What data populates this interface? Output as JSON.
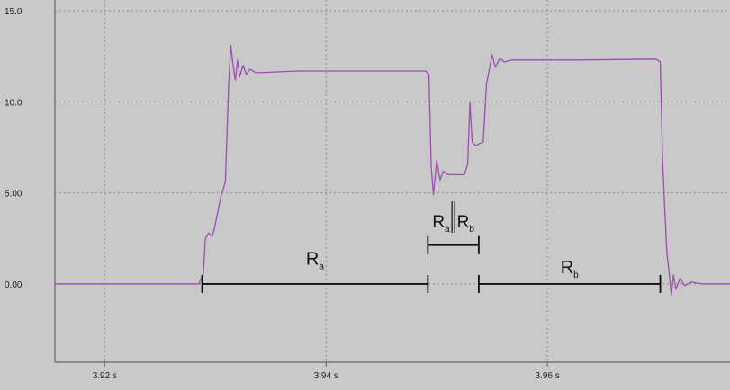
{
  "chart_data": {
    "type": "line",
    "title": "",
    "xlabel": "",
    "ylabel": "",
    "xlim": [
      3.9155,
      3.9765
    ],
    "ylim": [
      -4.3,
      15.6
    ],
    "x_ticks": [
      {
        "value": 3.92,
        "label": "3.92 s"
      },
      {
        "value": 3.94,
        "label": "3.94 s"
      },
      {
        "value": 3.96,
        "label": "3.96 s"
      }
    ],
    "y_ticks": [
      {
        "value": 15.0,
        "label": "15.0"
      },
      {
        "value": 10.0,
        "label": "10.0"
      },
      {
        "value": 5.0,
        "label": "5.00"
      },
      {
        "value": 0.0,
        "label": "0.00"
      }
    ],
    "grid": true,
    "series": [
      {
        "color": "#9b4fb0",
        "points": [
          [
            3.9155,
            0.0
          ],
          [
            3.925,
            0.0
          ],
          [
            3.9285,
            0.0
          ],
          [
            3.9289,
            0.5
          ],
          [
            3.9291,
            2.5
          ],
          [
            3.9294,
            2.8
          ],
          [
            3.9297,
            2.6
          ],
          [
            3.9299,
            3.0
          ],
          [
            3.9305,
            4.8
          ],
          [
            3.9309,
            5.6
          ],
          [
            3.9312,
            11.0
          ],
          [
            3.9314,
            13.1
          ],
          [
            3.9316,
            12.0
          ],
          [
            3.9318,
            11.2
          ],
          [
            3.932,
            12.3
          ],
          [
            3.9322,
            11.4
          ],
          [
            3.9325,
            12.0
          ],
          [
            3.9328,
            11.5
          ],
          [
            3.9331,
            11.8
          ],
          [
            3.9337,
            11.6
          ],
          [
            3.9375,
            11.7
          ],
          [
            3.9445,
            11.7
          ],
          [
            3.949,
            11.7
          ],
          [
            3.9493,
            11.5
          ],
          [
            3.9495,
            6.5
          ],
          [
            3.9497,
            4.9
          ],
          [
            3.95,
            6.8
          ],
          [
            3.9503,
            5.7
          ],
          [
            3.9506,
            6.2
          ],
          [
            3.951,
            6.0
          ],
          [
            3.9525,
            6.0
          ],
          [
            3.9528,
            6.6
          ],
          [
            3.953,
            10.0
          ],
          [
            3.9532,
            7.8
          ],
          [
            3.9535,
            7.6
          ],
          [
            3.9542,
            7.8
          ],
          [
            3.9545,
            11.0
          ],
          [
            3.9547,
            11.6
          ],
          [
            3.955,
            12.6
          ],
          [
            3.9553,
            11.9
          ],
          [
            3.9557,
            12.4
          ],
          [
            3.9561,
            12.2
          ],
          [
            3.9568,
            12.3
          ],
          [
            3.9625,
            12.3
          ],
          [
            3.9698,
            12.35
          ],
          [
            3.9702,
            12.2
          ],
          [
            3.9704,
            7.0
          ],
          [
            3.9706,
            4.2
          ],
          [
            3.9708,
            1.7
          ],
          [
            3.971,
            0.6
          ],
          [
            3.9712,
            -0.6
          ],
          [
            3.9714,
            0.5
          ],
          [
            3.9716,
            -0.3
          ],
          [
            3.972,
            0.3
          ],
          [
            3.9724,
            -0.1
          ],
          [
            3.973,
            0.1
          ],
          [
            3.974,
            0.0
          ],
          [
            3.9765,
            0.0
          ]
        ]
      }
    ],
    "annotations": [
      {
        "label": "R",
        "subscript": "a",
        "x1": 3.9288,
        "x2": 3.9492,
        "y": 0.0,
        "text_y": 1.05
      },
      {
        "label": "R",
        "subscript": "a",
        "label2": "R",
        "subscript2": "b",
        "x1": 3.9492,
        "x2": 3.9538,
        "y": 2.13,
        "text_y": 3.1,
        "double_bar": true
      },
      {
        "label": "R",
        "subscript": "b",
        "x1": 3.9538,
        "x2": 3.9702,
        "y": 0.0,
        "text_y": 0.6
      }
    ],
    "colors": {
      "plot_background": "#c9c9c9",
      "axis": "#666666",
      "grid": "#8c8c8c",
      "series": "#9b4fb0",
      "annotation": "#111111"
    }
  }
}
